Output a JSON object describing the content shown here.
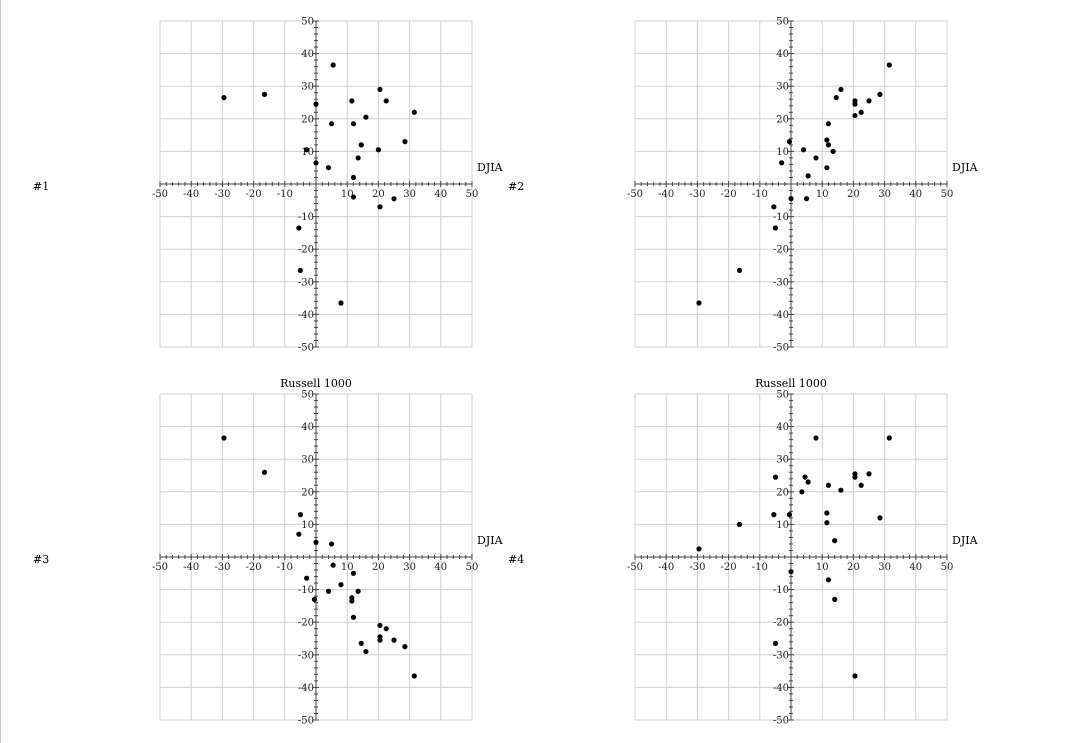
{
  "colors": {
    "grid": "#d0d0d0",
    "axis": "#444444",
    "point": "#000000",
    "text": "#000000"
  },
  "chart_data": [
    {
      "type": "scatter",
      "plot_label": "#1",
      "xlabel": "DJIA",
      "ylabel": "",
      "xlim": [
        -50,
        50
      ],
      "ylim": [
        -50,
        50
      ],
      "grid": true,
      "xticks": [
        -50,
        -40,
        -30,
        -20,
        -10,
        10,
        20,
        30,
        40,
        50
      ],
      "yticks": [
        50,
        40,
        30,
        20,
        10,
        -10,
        -20,
        -30,
        -40,
        -50
      ],
      "points": [
        [
          -29.5,
          26.5
        ],
        [
          -16.5,
          27.5
        ],
        [
          5.5,
          36.5
        ],
        [
          0,
          24.5
        ],
        [
          11.5,
          25.5
        ],
        [
          20.5,
          29
        ],
        [
          22.5,
          25.5
        ],
        [
          5,
          18.5
        ],
        [
          12,
          18.5
        ],
        [
          16,
          20.5
        ],
        [
          31.5,
          22
        ],
        [
          28.5,
          13
        ],
        [
          14.5,
          12
        ],
        [
          -3,
          10.5
        ],
        [
          13.5,
          8
        ],
        [
          20,
          10.5
        ],
        [
          0,
          6.5
        ],
        [
          4,
          5
        ],
        [
          12,
          2
        ],
        [
          12,
          -4
        ],
        [
          20.5,
          -7
        ],
        [
          25,
          -4.5
        ],
        [
          -5.5,
          -13.5
        ],
        [
          -5,
          -26.5
        ],
        [
          8,
          -36.5
        ]
      ]
    },
    {
      "type": "scatter",
      "plot_label": "#2",
      "xlabel": "DJIA",
      "ylabel": "",
      "xlim": [
        -50,
        50
      ],
      "ylim": [
        -50,
        50
      ],
      "grid": true,
      "xticks": [
        -50,
        -40,
        -30,
        -20,
        -10,
        10,
        20,
        30,
        40,
        50
      ],
      "yticks": [
        50,
        40,
        30,
        20,
        10,
        -10,
        -20,
        -30,
        -40,
        -50
      ],
      "points": [
        [
          31.5,
          36.5
        ],
        [
          16,
          29
        ],
        [
          14.5,
          26.5
        ],
        [
          25,
          25.5
        ],
        [
          20.5,
          25.5
        ],
        [
          20.5,
          24.5
        ],
        [
          28.5,
          27.5
        ],
        [
          22.5,
          22
        ],
        [
          20.5,
          21
        ],
        [
          12,
          18.5
        ],
        [
          -0.5,
          13
        ],
        [
          11.5,
          13.5
        ],
        [
          12,
          12
        ],
        [
          4,
          10.5
        ],
        [
          13.5,
          10
        ],
        [
          8,
          8
        ],
        [
          -3,
          6.5
        ],
        [
          11.5,
          5
        ],
        [
          5.5,
          2.5
        ],
        [
          0,
          -4.5
        ],
        [
          5,
          -4.5
        ],
        [
          -5.5,
          -7
        ],
        [
          -5,
          -13.5
        ],
        [
          -16.5,
          -26.5
        ],
        [
          -29.5,
          -36.5
        ]
      ]
    },
    {
      "type": "scatter",
      "plot_label": "#3",
      "xlabel": "DJIA",
      "ylabel": "Russell 1000",
      "xlim": [
        -50,
        50
      ],
      "ylim": [
        -50,
        50
      ],
      "grid": true,
      "xticks": [
        -50,
        -40,
        -30,
        -20,
        -10,
        10,
        20,
        30,
        40,
        50
      ],
      "yticks": [
        50,
        40,
        30,
        20,
        10,
        -10,
        -20,
        -30,
        -40,
        -50
      ],
      "points": [
        [
          -29.5,
          36.5
        ],
        [
          -16.5,
          26
        ],
        [
          -5,
          13
        ],
        [
          -5.5,
          7
        ],
        [
          0,
          4.5
        ],
        [
          5,
          4
        ],
        [
          5.5,
          -2.5
        ],
        [
          -3,
          -6.5
        ],
        [
          12,
          -5
        ],
        [
          8,
          -8.5
        ],
        [
          4,
          -10.5
        ],
        [
          13.5,
          -10.5
        ],
        [
          11.5,
          -12.5
        ],
        [
          11.5,
          -13.5
        ],
        [
          -0.5,
          -13
        ],
        [
          12,
          -18.5
        ],
        [
          20.5,
          -21
        ],
        [
          22.5,
          -22
        ],
        [
          20.5,
          -24.5
        ],
        [
          20.5,
          -25.5
        ],
        [
          25,
          -25.5
        ],
        [
          14.5,
          -26.5
        ],
        [
          28.5,
          -27.5
        ],
        [
          16,
          -29
        ],
        [
          31.5,
          -36.5
        ]
      ]
    },
    {
      "type": "scatter",
      "plot_label": "#4",
      "xlabel": "DJIA",
      "ylabel": "Russell 1000",
      "xlim": [
        -50,
        50
      ],
      "ylim": [
        -50,
        50
      ],
      "grid": true,
      "xticks": [
        -50,
        -40,
        -30,
        -20,
        -10,
        10,
        20,
        30,
        40,
        50
      ],
      "yticks": [
        50,
        40,
        30,
        20,
        10,
        -10,
        -20,
        -30,
        -40,
        -50
      ],
      "points": [
        [
          8,
          36.5
        ],
        [
          31.5,
          36.5
        ],
        [
          20.5,
          25.5
        ],
        [
          25,
          25.5
        ],
        [
          20.5,
          24.5
        ],
        [
          4.5,
          24.5
        ],
        [
          -5,
          24.5
        ],
        [
          5.5,
          23
        ],
        [
          12,
          22
        ],
        [
          22.5,
          22
        ],
        [
          16,
          20.5
        ],
        [
          3.5,
          20
        ],
        [
          -5.5,
          13
        ],
        [
          -0.5,
          13
        ],
        [
          11.5,
          13.5
        ],
        [
          28.5,
          12
        ],
        [
          11.5,
          10.5
        ],
        [
          -16.5,
          10
        ],
        [
          14,
          5
        ],
        [
          -29.5,
          2.5
        ],
        [
          0,
          -4.5
        ],
        [
          12,
          -7
        ],
        [
          14,
          -13
        ],
        [
          -5,
          -26.5
        ],
        [
          20.5,
          -36.5
        ]
      ]
    }
  ]
}
